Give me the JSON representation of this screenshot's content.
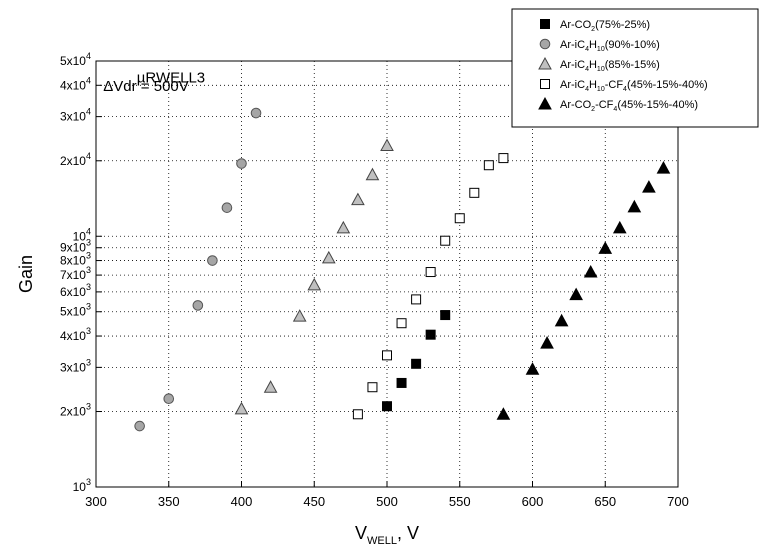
{
  "chart_data": {
    "type": "scatter",
    "title": "",
    "xlabel": "V",
    "xlabel_sub": "WELL",
    "xlabel_unit": ", V",
    "ylabel": "Gain",
    "xlim": [
      300,
      700
    ],
    "ylim": [
      1000,
      50000
    ],
    "yscale": "log",
    "grid": "dotted",
    "legend_position": "top-right",
    "x_ticks": [
      300,
      350,
      400,
      450,
      500,
      550,
      600,
      650,
      700
    ],
    "y_ticks": [
      {
        "value": 1000,
        "mant": "",
        "exp": "3"
      },
      {
        "value": 2000,
        "mant": "2x",
        "exp": "3"
      },
      {
        "value": 3000,
        "mant": "3x",
        "exp": "3"
      },
      {
        "value": 4000,
        "mant": "4x",
        "exp": "3"
      },
      {
        "value": 5000,
        "mant": "5x",
        "exp": "3"
      },
      {
        "value": 6000,
        "mant": "6x",
        "exp": "3"
      },
      {
        "value": 7000,
        "mant": "7x",
        "exp": "3"
      },
      {
        "value": 8000,
        "mant": "8x",
        "exp": "3"
      },
      {
        "value": 9000,
        "mant": "9x",
        "exp": "3"
      },
      {
        "value": 10000,
        "mant": "",
        "exp": "4"
      },
      {
        "value": 20000,
        "mant": "2x",
        "exp": "4"
      },
      {
        "value": 30000,
        "mant": "3x",
        "exp": "4"
      },
      {
        "value": 40000,
        "mant": "4x",
        "exp": "4"
      },
      {
        "value": 50000,
        "mant": "5x",
        "exp": "4"
      }
    ],
    "annotations": [
      {
        "text": "ΔVdr = 500V",
        "x": 305,
        "y": 38000
      },
      {
        "text": "µRWELL3",
        "x": 328,
        "y": 41000
      }
    ],
    "series": [
      {
        "name": "Ar-CO2(75%-25%)",
        "legend_parts": [
          [
            "Ar-CO",
            ""
          ],
          [
            "2",
            "sub"
          ],
          [
            "(75%-25%)",
            ""
          ]
        ],
        "marker": "square",
        "fill": "#000000",
        "stroke": "#000000",
        "x": [
          500,
          510,
          520,
          530,
          540
        ],
        "y": [
          2100,
          2600,
          3100,
          4050,
          4850
        ]
      },
      {
        "name": "Ar-iC4H10(90%-10%)",
        "legend_parts": [
          [
            "Ar-iC",
            ""
          ],
          [
            "4",
            "sub"
          ],
          [
            "H",
            ""
          ],
          [
            "10",
            "sub"
          ],
          [
            "(90%-10%)",
            ""
          ]
        ],
        "marker": "circle",
        "fill": "#a6a6a6",
        "stroke": "#555555",
        "x": [
          330,
          350,
          370,
          380,
          390,
          400,
          410
        ],
        "y": [
          1750,
          2250,
          5300,
          8000,
          13000,
          19500,
          31000
        ]
      },
      {
        "name": "Ar-iC4H10(85%-15%)",
        "legend_parts": [
          [
            "Ar-iC",
            ""
          ],
          [
            "4",
            "sub"
          ],
          [
            "H",
            ""
          ],
          [
            "10",
            "sub"
          ],
          [
            "(85%-15%)",
            ""
          ]
        ],
        "marker": "triangle",
        "fill": "#c0c0c0",
        "stroke": "#444444",
        "x": [
          400,
          420,
          440,
          450,
          460,
          470,
          480,
          490,
          500
        ],
        "y": [
          2050,
          2500,
          4800,
          6400,
          8200,
          10800,
          14000,
          17600,
          23000
        ]
      },
      {
        "name": "Ar-iC4H10-CF4(45%-15%-40%)",
        "legend_parts": [
          [
            "Ar-iC",
            ""
          ],
          [
            "4",
            "sub"
          ],
          [
            "H",
            ""
          ],
          [
            "10",
            "sub"
          ],
          [
            "-CF",
            ""
          ],
          [
            "4",
            "sub"
          ],
          [
            "(45%-15%-40%)",
            ""
          ]
        ],
        "marker": "square",
        "fill": "#ffffff",
        "stroke": "#000000",
        "x": [
          480,
          490,
          500,
          510,
          520,
          530,
          540,
          550,
          560,
          570,
          580
        ],
        "y": [
          1950,
          2500,
          3350,
          4500,
          5600,
          7200,
          9600,
          11800,
          14900,
          19200,
          20500
        ]
      },
      {
        "name": "Ar-CO2-CF4(45%-15%-40%)",
        "legend_parts": [
          [
            "Ar-CO",
            ""
          ],
          [
            "2",
            "sub"
          ],
          [
            "-CF",
            ""
          ],
          [
            "4",
            "sub"
          ],
          [
            "(45%-15%-40%)",
            ""
          ]
        ],
        "marker": "triangle",
        "fill": "#000000",
        "stroke": "#000000",
        "x": [
          580,
          600,
          610,
          620,
          630,
          640,
          650,
          660,
          670,
          680,
          690
        ],
        "y": [
          1950,
          2950,
          3750,
          4600,
          5850,
          7200,
          8950,
          10800,
          13100,
          15700,
          18700
        ]
      }
    ]
  }
}
